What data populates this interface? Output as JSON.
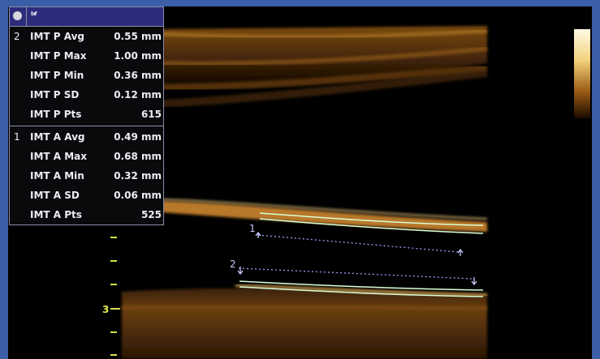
{
  "panel": {
    "header": {
      "icons": [
        "record-icon",
        "bf-icon"
      ]
    },
    "posterior": {
      "index": "2",
      "rows": [
        {
          "label": "IMT P Avg",
          "value": "0.55 mm"
        },
        {
          "label": "IMT P Max",
          "value": "1.00 mm"
        },
        {
          "label": "IMT P Min",
          "value": "0.36 mm"
        },
        {
          "label": "IMT P SD",
          "value": "0.12 mm"
        },
        {
          "label": "IMT P Pts",
          "value": "615"
        }
      ]
    },
    "anterior": {
      "index": "1",
      "rows": [
        {
          "label": "IMT A Avg",
          "value": "0.49 mm"
        },
        {
          "label": "IMT A Max",
          "value": "0.68 mm"
        },
        {
          "label": "IMT A Min",
          "value": "0.32 mm"
        },
        {
          "label": "IMT A SD",
          "value": "0.06 mm"
        },
        {
          "label": "IMT A Pts",
          "value": "525"
        }
      ]
    }
  },
  "image": {
    "cursor_labels": [
      "1",
      "2"
    ],
    "depth_label": "3"
  },
  "colors": {
    "frame": "#3a5ea8",
    "panel_header": "#2d2c7c",
    "trace": "#d8ffd8",
    "cursor": "#9c9cff",
    "depth_scale": "#d7e04a"
  }
}
